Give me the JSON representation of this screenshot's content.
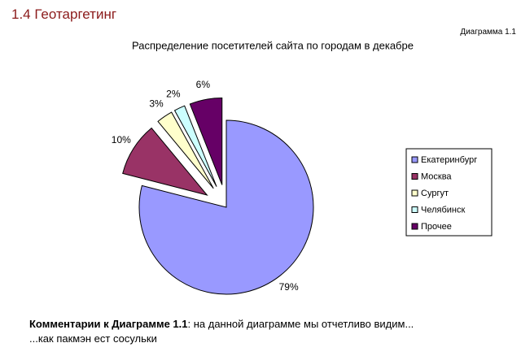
{
  "header": {
    "title": "1.4 Геотаргетинг",
    "diagram_label": "Диаграмма 1.1"
  },
  "chart_data": {
    "type": "pie",
    "title": "Распределение посетителей сайта по городам в декабре",
    "categories": [
      "Екатеринбург",
      "Москва",
      "Сургут",
      "Челябинск",
      "Прочее"
    ],
    "values": [
      79,
      10,
      3,
      2,
      6
    ],
    "value_labels": [
      "79%",
      "10%",
      "3%",
      "2%",
      "6%"
    ],
    "colors": [
      "#9999ff",
      "#993366",
      "#ffffcc",
      "#ccffff",
      "#660066"
    ],
    "legend": "right"
  },
  "comment": {
    "label": "Комментарии к Диаграмме 1.1",
    "text": ": на данной диаграмме мы отчетливо видим...",
    "line2": "...как пакмэн ест сосульки"
  }
}
